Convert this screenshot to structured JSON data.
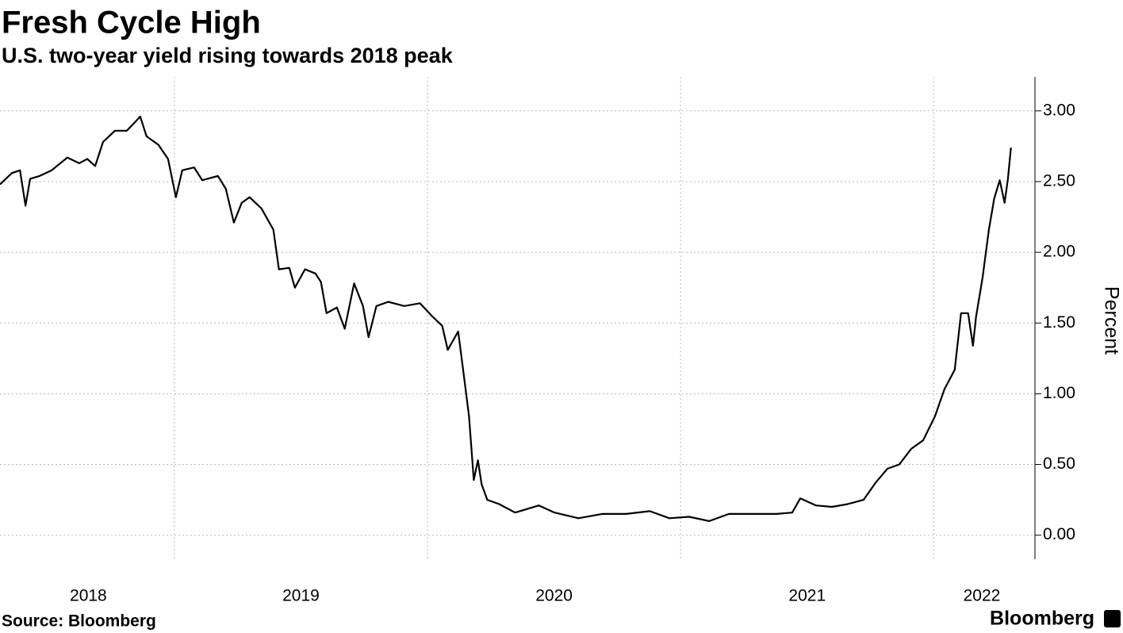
{
  "chart_data": {
    "type": "line",
    "title": "Fresh Cycle High",
    "subtitle": "U.S. two-year yield rising towards 2018 peak",
    "y_axis_label": "Percent",
    "source": "Source: Bloomberg",
    "brand": "Bloomberg",
    "x": [
      2018.311,
      2018.358,
      2018.39,
      2018.412,
      2018.43,
      2018.468,
      2018.515,
      2018.577,
      2018.624,
      2018.656,
      2018.687,
      2018.718,
      2018.765,
      2018.812,
      2018.844,
      2018.865,
      2018.89,
      2018.937,
      2018.975,
      2019.006,
      2019.031,
      2019.078,
      2019.11,
      2019.172,
      2019.203,
      2019.235,
      2019.266,
      2019.297,
      2019.344,
      2019.391,
      2019.413,
      2019.454,
      2019.476,
      2019.516,
      2019.557,
      2019.579,
      2019.601,
      2019.642,
      2019.673,
      2019.71,
      2019.745,
      2019.767,
      2019.798,
      2019.845,
      2019.908,
      2019.97,
      2020.017,
      2020.058,
      2020.08,
      2020.121,
      2020.142,
      2020.164,
      2020.183,
      2020.199,
      2020.214,
      2020.236,
      2020.283,
      2020.346,
      2020.44,
      2020.502,
      2020.596,
      2020.69,
      2020.784,
      2020.878,
      2020.956,
      2021.034,
      2021.113,
      2021.191,
      2021.285,
      2021.379,
      2021.441,
      2021.473,
      2021.535,
      2021.598,
      2021.66,
      2021.723,
      2021.77,
      2021.817,
      2021.864,
      2021.911,
      2021.958,
      2022.005,
      2022.042,
      2022.083,
      2022.108,
      2022.136,
      2022.155,
      2022.167,
      2022.193,
      2022.218,
      2022.239,
      2022.261,
      2022.28,
      2022.293,
      2022.305
    ],
    "series": [
      {
        "name": "U.S. two-year yield",
        "color": "#000000",
        "values": [
          2.48,
          2.56,
          2.58,
          2.33,
          2.52,
          2.54,
          2.58,
          2.67,
          2.63,
          2.66,
          2.61,
          2.78,
          2.86,
          2.86,
          2.92,
          2.96,
          2.82,
          2.76,
          2.66,
          2.39,
          2.58,
          2.6,
          2.51,
          2.54,
          2.45,
          2.21,
          2.35,
          2.39,
          2.31,
          2.16,
          1.88,
          1.89,
          1.75,
          1.88,
          1.85,
          1.79,
          1.57,
          1.61,
          1.46,
          1.78,
          1.62,
          1.4,
          1.62,
          1.65,
          1.62,
          1.64,
          1.55,
          1.48,
          1.31,
          1.44,
          1.15,
          0.84,
          0.39,
          0.53,
          0.36,
          0.25,
          0.22,
          0.16,
          0.21,
          0.16,
          0.12,
          0.15,
          0.15,
          0.17,
          0.12,
          0.13,
          0.1,
          0.15,
          0.15,
          0.15,
          0.16,
          0.26,
          0.21,
          0.2,
          0.22,
          0.25,
          0.37,
          0.47,
          0.5,
          0.61,
          0.67,
          0.84,
          1.03,
          1.17,
          1.57,
          1.57,
          1.34,
          1.54,
          1.82,
          2.16,
          2.38,
          2.51,
          2.35,
          2.52,
          2.74
        ]
      }
    ],
    "xlim": [
      2018.311,
      2022.4
    ],
    "xticks": [
      {
        "value": 2018.66,
        "label": "2018"
      },
      {
        "value": 2019.5,
        "label": "2019"
      },
      {
        "value": 2020.5,
        "label": "2020"
      },
      {
        "value": 2021.5,
        "label": "2021"
      },
      {
        "value": 2022.19,
        "label": "2022"
      }
    ],
    "xgrid": [
      2019,
      2020,
      2021,
      2022
    ],
    "ylim": [
      -0.17,
      3.24
    ],
    "yticks": [
      {
        "value": 0,
        "label": "0.00"
      },
      {
        "value": 0.5,
        "label": "0.50"
      },
      {
        "value": 1,
        "label": "1.00"
      },
      {
        "value": 1.5,
        "label": "1.50"
      },
      {
        "value": 2,
        "label": "2.00"
      },
      {
        "value": 2.5,
        "label": "2.50"
      },
      {
        "value": 3,
        "label": "3.00"
      }
    ],
    "grid": true,
    "y_axis_side": "right"
  }
}
